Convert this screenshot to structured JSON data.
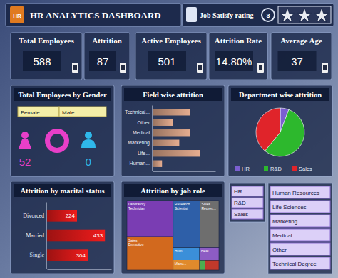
{
  "header": {
    "icon": "HR",
    "title": "HR ANALYTICS DASHBOARD",
    "rating_label": "Job Satisfy rating",
    "rating": 3
  },
  "kpis": [
    {
      "label": "Total Employees",
      "value": 588
    },
    {
      "label": "Attrition",
      "value": 87
    },
    {
      "label": "Active Employees",
      "value": 501
    },
    {
      "label": "Attrition Rate",
      "value": "14.80%"
    },
    {
      "label": "Average Age",
      "value": 37
    }
  ],
  "gender": {
    "title": "Total Employees by Gender",
    "items": [
      {
        "label": "Female",
        "value": 52,
        "color": "#e83fc8"
      },
      {
        "label": "Male",
        "value": 0,
        "color": "#2fb8ea"
      }
    ]
  },
  "chart_data": [
    {
      "type": "bar",
      "title": "Field wise attrition",
      "orientation": "horizontal",
      "categories": [
        "Technical...",
        "Other",
        "Medical",
        "Marketing",
        "Life...",
        "Human..."
      ],
      "values": [
        24,
        13,
        24,
        17,
        30,
        6
      ],
      "color": "#e6ad90",
      "xlim": [
        0,
        40
      ],
      "tick_labels": "y"
    },
    {
      "type": "pie",
      "title": "Department wise attrition",
      "categories": [
        "HR",
        "R&D",
        "Sales"
      ],
      "values": [
        5,
        48,
        34
      ],
      "colors": [
        "#7b5fd0",
        "#2db82d",
        "#e0242a"
      ],
      "legend": "bottom"
    },
    {
      "type": "bar",
      "title": "Attrition by marital status",
      "orientation": "horizontal",
      "categories": [
        "Divorced",
        "Married",
        "Single"
      ],
      "values": [
        224,
        433,
        304
      ],
      "color": "#f01c1c",
      "data_labels": true,
      "xlim": [
        0,
        480
      ],
      "tick_labels": "y"
    },
    {
      "type": "treemap",
      "title": "Attrition by job role",
      "categories": [
        "Laboratory Technician",
        "Sales Executive",
        "Research Scientist",
        "Sales Repres...",
        "Hum...",
        "Manu...",
        "Heal...",
        null,
        null
      ],
      "values": [
        62,
        57,
        47,
        33,
        12,
        10,
        9,
        2,
        5
      ],
      "colors": [
        "#7a3db3",
        "#d2691e",
        "#2e5fa8",
        "#6e6e6e",
        "#3b8fd9",
        "#e08a2c",
        "#8d5cc4",
        "#4caf50",
        "#c0392b"
      ]
    }
  ],
  "slicers": [
    {
      "items": [
        "HR",
        "R&D",
        "Sales"
      ]
    },
    {
      "items": [
        "Human Resources",
        "Life Sciences",
        "Marketing",
        "Medical",
        "Other",
        "Technical Degree"
      ]
    }
  ]
}
